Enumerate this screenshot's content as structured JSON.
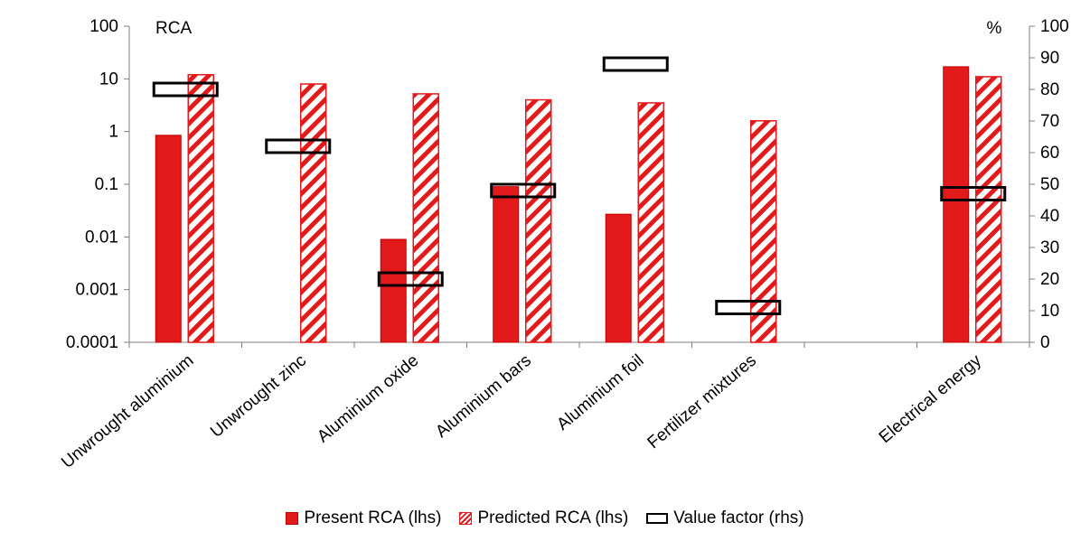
{
  "chart_data": {
    "type": "bar",
    "categories": [
      "Unwrought aluminium",
      "Unwrought zinc",
      "Aluminium oxide",
      "Aluminium bars",
      "Aluminium foil",
      "Fertilizer mixtures",
      "",
      "Electrical energy"
    ],
    "series": [
      {
        "name": "Present RCA (lhs)",
        "axis": "left",
        "style": "solid",
        "values": [
          0.85,
          null,
          0.009,
          0.09,
          0.027,
          null,
          null,
          17
        ]
      },
      {
        "name": "Predicted RCA (lhs)",
        "axis": "left",
        "style": "hatched",
        "values": [
          12,
          8,
          5.2,
          4,
          3.5,
          1.6,
          null,
          11
        ]
      },
      {
        "name": "Value factor (rhs)",
        "axis": "right",
        "style": "outline-marker",
        "values": [
          80,
          62,
          20,
          48,
          88,
          11,
          null,
          47
        ]
      }
    ],
    "y_left": {
      "label": "RCA",
      "scale": "log",
      "ylim": [
        0.0001,
        100
      ],
      "ticks": [
        "100",
        "10",
        "1",
        "0.1",
        "0.01",
        "0.001",
        "0.0001"
      ]
    },
    "y_right": {
      "label": "%",
      "scale": "linear",
      "ylim": [
        0,
        100
      ],
      "ticks": [
        "100",
        "90",
        "80",
        "70",
        "60",
        "50",
        "40",
        "30",
        "20",
        "10",
        "0"
      ]
    },
    "grid": false,
    "legend_position": "bottom",
    "colors": {
      "bar": "#e31a1c",
      "bar_border": "#c00000",
      "marker": "#000000"
    }
  }
}
